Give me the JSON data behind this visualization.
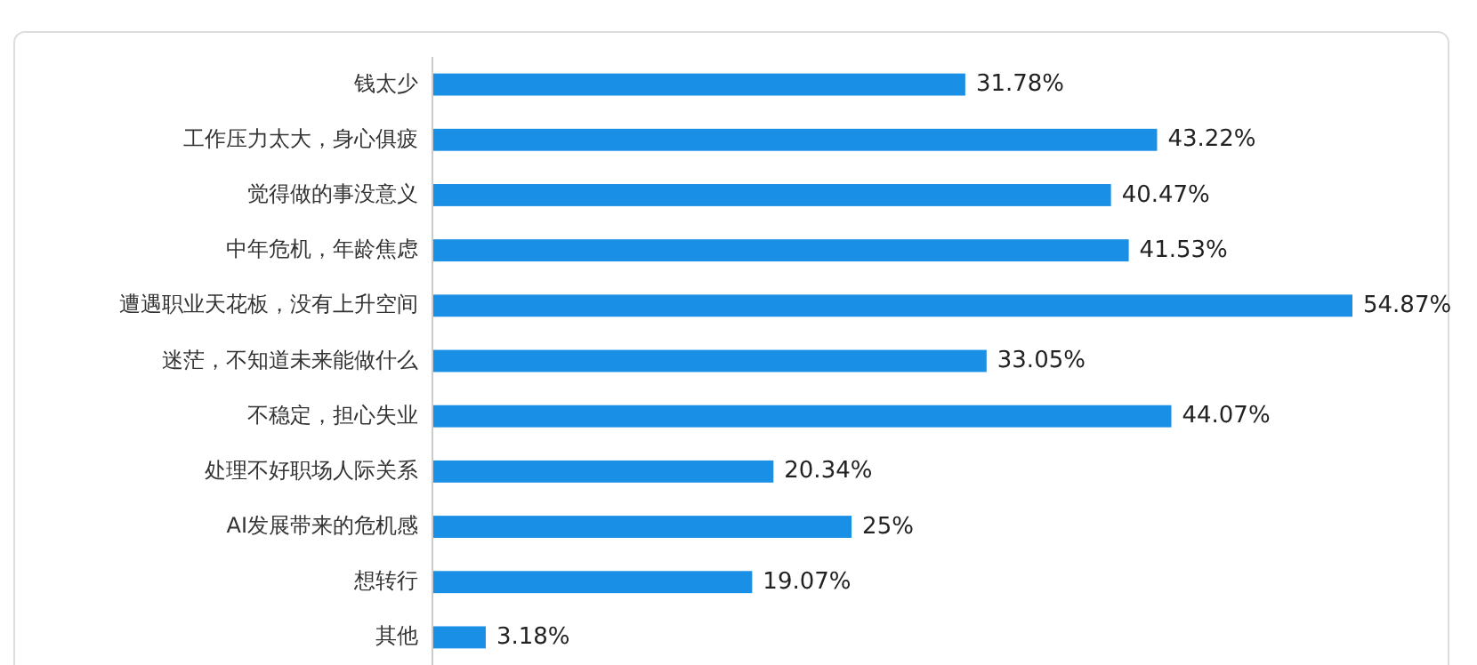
{
  "chart_data": {
    "type": "bar",
    "orientation": "horizontal",
    "categories": [
      "钱太少",
      "工作压力太大，身心俱疲",
      "觉得做的事没意义",
      "中年危机，年龄焦虑",
      "遭遇职业天花板，没有上升空间",
      "迷茫，不知道未来能做什么",
      "不稳定，担心失业",
      "处理不好职场人际关系",
      "AI发展带来的危机感",
      "想转行",
      "其他"
    ],
    "values": [
      31.78,
      43.22,
      40.47,
      41.53,
      54.87,
      33.05,
      44.07,
      20.34,
      25,
      19.07,
      3.18
    ],
    "value_labels": [
      "31.78%",
      "43.22%",
      "40.47%",
      "41.53%",
      "54.87%",
      "33.05%",
      "44.07%",
      "20.34%",
      "25%",
      "19.07%",
      "3.18%"
    ],
    "color": "#1a8fe6"
  }
}
